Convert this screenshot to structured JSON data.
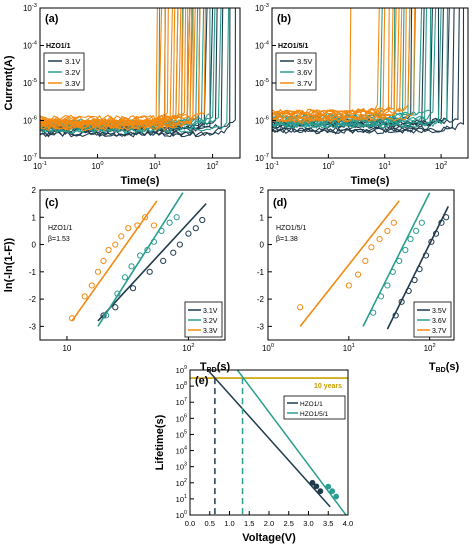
{
  "colors": {
    "dark": "#1f3b4d",
    "mid": "#2a9d8f",
    "orange": "#f28a12",
    "gold": "#c8a000"
  },
  "chart_data": [
    {
      "panel": "(a)",
      "type": "line",
      "xscale": "log",
      "yscale": "log",
      "xlim": [
        0.1,
        300
      ],
      "ylim": [
        1e-07,
        0.001
      ],
      "xlabel": "Time(s)",
      "ylabel": "Current(A)",
      "xticks": [
        "10-1",
        "100",
        "101",
        "102"
      ],
      "yticks": [
        "10-7",
        "10-6",
        "10-5",
        "10-4",
        "10-3"
      ],
      "legend_title": "HZO1/1",
      "series": [
        {
          "name": "3.1V",
          "color": "dark",
          "baseline": 6e-07,
          "breakdown_times": [
            15,
            40,
            60,
            80,
            100,
            120,
            150,
            200,
            250
          ]
        },
        {
          "name": "3.2V",
          "color": "mid",
          "baseline": 7e-07,
          "breakdown_times": [
            12,
            25,
            30,
            45,
            55,
            70,
            90,
            110,
            140,
            190
          ]
        },
        {
          "name": "3.3V",
          "color": "orange",
          "baseline": 9e-07,
          "breakdown_times": [
            11,
            13,
            15,
            17,
            20,
            22,
            25,
            28,
            31,
            34,
            37,
            40,
            43,
            46,
            50,
            60,
            75
          ]
        }
      ]
    },
    {
      "panel": "(b)",
      "type": "line",
      "xscale": "log",
      "yscale": "log",
      "xlim": [
        0.1,
        300
      ],
      "ylim": [
        1e-07,
        0.001
      ],
      "xlabel": "Time(s)",
      "ylabel": "",
      "xticks": [
        "10-1",
        "100",
        "101",
        "102"
      ],
      "yticks": [
        "10-7",
        "10-6",
        "10-5",
        "10-4",
        "10-3"
      ],
      "legend_title": "HZO1/5/1",
      "series": [
        {
          "name": "3.5V",
          "color": "dark",
          "baseline": 7e-07,
          "breakdown_times": [
            30,
            50,
            70,
            90,
            110,
            140,
            170,
            210,
            250
          ]
        },
        {
          "name": "3.6V",
          "color": "mid",
          "baseline": 1e-06,
          "breakdown_times": [
            9,
            15,
            22,
            28,
            35,
            45,
            55,
            65,
            80,
            100,
            130
          ]
        },
        {
          "name": "3.7V",
          "color": "orange",
          "baseline": 1.3e-06,
          "breakdown_times": [
            2.5,
            8,
            10,
            12,
            14,
            16,
            18,
            20,
            24,
            28,
            34
          ]
        }
      ]
    },
    {
      "panel": "(c)",
      "type": "scatter",
      "xscale": "log",
      "xlim": [
        6,
        200
      ],
      "ylim": [
        -3.5,
        2
      ],
      "xlabel": "T_BD(s)",
      "ylabel": "ln(-ln(1-F))",
      "xticks": [
        "10",
        "102"
      ],
      "yticks": [
        "-3",
        "-2",
        "-1",
        "0",
        "1",
        "2"
      ],
      "annotation": [
        "HZO1/1",
        "β=1.53"
      ],
      "series": [
        {
          "name": "3.1V",
          "color": "dark",
          "points": [
            [
              20,
              -2.6
            ],
            [
              25,
              -2.3
            ],
            [
              35,
              -1.6
            ],
            [
              48,
              -1.0
            ],
            [
              62,
              -0.6
            ],
            [
              75,
              -0.3
            ],
            [
              85,
              0.0
            ],
            [
              100,
              0.4
            ],
            [
              115,
              0.6
            ],
            [
              130,
              0.9
            ]
          ],
          "fit": [
            [
              18,
              -2.8
            ],
            [
              140,
              1.5
            ]
          ]
        },
        {
          "name": "3.2V",
          "color": "mid",
          "points": [
            [
              21,
              -2.6
            ],
            [
              26,
              -1.8
            ],
            [
              30,
              -1.2
            ],
            [
              34,
              -0.8
            ],
            [
              40,
              -0.4
            ],
            [
              46,
              -0.2
            ],
            [
              52,
              0.1
            ],
            [
              60,
              0.5
            ],
            [
              70,
              0.8
            ],
            [
              80,
              1.0
            ]
          ],
          "fit": [
            [
              18,
              -3.0
            ],
            [
              90,
              1.9
            ]
          ]
        },
        {
          "name": "3.3V",
          "color": "orange",
          "points": [
            [
              11,
              -2.7
            ],
            [
              14,
              -1.9
            ],
            [
              16,
              -1.5
            ],
            [
              18,
              -1.0
            ],
            [
              20,
              -0.6
            ],
            [
              22,
              -0.2
            ],
            [
              25,
              0.0
            ],
            [
              28,
              0.3
            ],
            [
              32,
              0.6
            ],
            [
              38,
              0.7
            ],
            [
              44,
              1.0
            ],
            [
              52,
              0.7
            ]
          ],
          "fit": [
            [
              11,
              -2.8
            ],
            [
              55,
              1.6
            ]
          ]
        }
      ]
    },
    {
      "panel": "(d)",
      "type": "scatter",
      "xscale": "log",
      "xlim": [
        1,
        200
      ],
      "ylim": [
        -3.5,
        2
      ],
      "xlabel": "T_BD(s)",
      "ylabel": "",
      "xticks": [
        "100",
        "101",
        "102"
      ],
      "yticks": [
        "-3",
        "-2",
        "-1",
        "0",
        "1",
        "2"
      ],
      "annotation": [
        "HZO1/5/1",
        "β=1.38"
      ],
      "series": [
        {
          "name": "3.5V",
          "color": "dark",
          "points": [
            [
              38,
              -2.6
            ],
            [
              45,
              -2.1
            ],
            [
              55,
              -1.7
            ],
            [
              65,
              -1.3
            ],
            [
              75,
              -0.9
            ],
            [
              90,
              -0.4
            ],
            [
              105,
              0.1
            ],
            [
              120,
              0.4
            ],
            [
              140,
              0.8
            ],
            [
              160,
              1.0
            ]
          ],
          "fit": [
            [
              30,
              -3.1
            ],
            [
              170,
              1.4
            ]
          ]
        },
        {
          "name": "3.6V",
          "color": "mid",
          "points": [
            [
              20,
              -2.5
            ],
            [
              25,
              -1.9
            ],
            [
              30,
              -1.5
            ],
            [
              35,
              -1.0
            ],
            [
              42,
              -0.6
            ],
            [
              50,
              -0.2
            ],
            [
              58,
              0.2
            ],
            [
              68,
              0.5
            ],
            [
              80,
              0.8
            ]
          ],
          "fit": [
            [
              15,
              -3.0
            ],
            [
              100,
              1.9
            ]
          ]
        },
        {
          "name": "3.7V",
          "color": "orange",
          "points": [
            [
              2.5,
              -2.3
            ],
            [
              10,
              -1.5
            ],
            [
              13,
              -1.1
            ],
            [
              16,
              -0.6
            ],
            [
              19,
              -0.1
            ],
            [
              24,
              0.2
            ],
            [
              30,
              0.5
            ],
            [
              36,
              0.8
            ]
          ],
          "fit": [
            [
              2.5,
              -3.0
            ],
            [
              42,
              1.6
            ]
          ]
        }
      ]
    },
    {
      "panel": "(e)",
      "type": "line",
      "yscale": "log",
      "xlim": [
        0.0,
        4.0
      ],
      "ylim": [
        1,
        1000000000.0
      ],
      "xlabel": "Voltage(V)",
      "ylabel": "Lifetime(s)",
      "xticks": [
        "0.0",
        "0.5",
        "1.0",
        "1.5",
        "2.0",
        "2.5",
        "3.0",
        "3.5",
        "4.0"
      ],
      "yticks": [
        "100",
        "101",
        "102",
        "103",
        "104",
        "105",
        "106",
        "107",
        "108",
        "109"
      ],
      "ten_years_label": "10 years",
      "ten_years_value": 315000000.0,
      "series": [
        {
          "name": "HZO1/1",
          "color": "dark",
          "line": [
            [
              0.45,
              1000000000.0
            ],
            [
              3.55,
              3.2
            ]
          ],
          "points": [
            [
              3.1,
              100
            ],
            [
              3.2,
              60
            ],
            [
              3.3,
              30
            ]
          ],
          "crossing_v": 0.63
        },
        {
          "name": "HZO1/5/1",
          "color": "mid",
          "line": [
            [
              1.2,
              1000000000.0
            ],
            [
              3.95,
              1.0
            ]
          ],
          "points": [
            [
              3.5,
              58
            ],
            [
              3.6,
              30
            ],
            [
              3.7,
              14
            ]
          ],
          "crossing_v": 1.33
        }
      ]
    }
  ]
}
